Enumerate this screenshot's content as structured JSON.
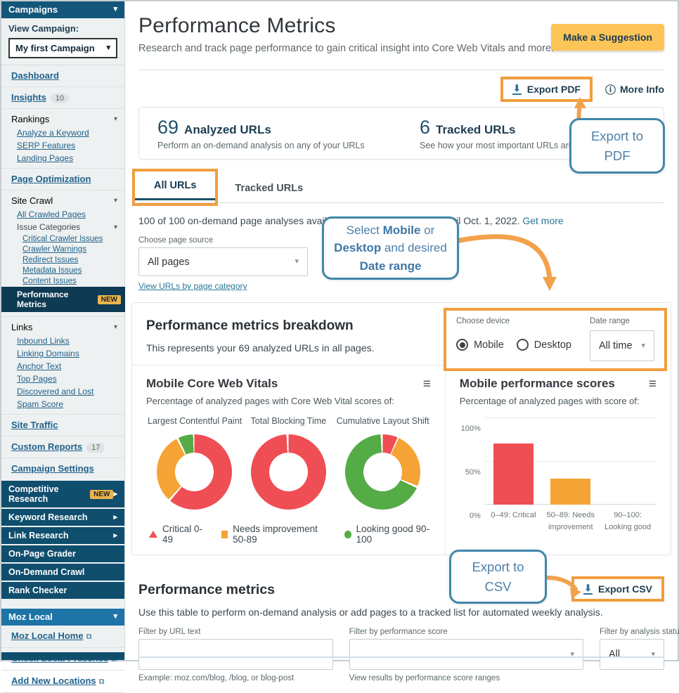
{
  "icons": {
    "chevron_down": "▾",
    "chevron_right": "▸",
    "menu": "≡",
    "info": "ⓘ",
    "download": "⬇",
    "external": "⧉"
  },
  "sidebar": {
    "campaigns_header": "Campaigns",
    "view_campaign_label": "View Campaign:",
    "campaign_value": "My first Campaign",
    "nav": [
      {
        "label": "Dashboard"
      },
      {
        "label": "Insights",
        "badge": "10"
      },
      {
        "label": "Rankings"
      },
      {
        "label": "Analyze a Keyword"
      },
      {
        "label": "SERP Features"
      },
      {
        "label": "Landing Pages"
      },
      {
        "label": "Page Optimization"
      },
      {
        "label": "Site Crawl"
      },
      {
        "label": "All Crawled Pages"
      },
      {
        "label": "Issue Categories"
      },
      {
        "label": "Critical Crawler Issues"
      },
      {
        "label": "Crawler Warnings"
      },
      {
        "label": "Redirect Issues"
      },
      {
        "label": "Metadata Issues"
      },
      {
        "label": "Content Issues"
      },
      {
        "label": "Performance Metrics",
        "badge": "NEW"
      },
      {
        "label": "Links"
      },
      {
        "label": "Inbound Links"
      },
      {
        "label": "Linking Domains"
      },
      {
        "label": "Anchor Text"
      },
      {
        "label": "Top Pages"
      },
      {
        "label": "Discovered and Lost"
      },
      {
        "label": "Spam Score"
      },
      {
        "label": "Site Traffic"
      },
      {
        "label": "Custom Reports",
        "badge": "17"
      },
      {
        "label": "Campaign Settings"
      }
    ],
    "dark": [
      {
        "label": "Competitive Research",
        "badge": "NEW"
      },
      {
        "label": "Keyword Research"
      },
      {
        "label": "Link Research"
      },
      {
        "label": "On-Page Grader"
      },
      {
        "label": "On-Demand Crawl"
      },
      {
        "label": "Rank Checker"
      }
    ],
    "moz": {
      "header": "Moz Local",
      "links": [
        {
          "label": "Moz Local Home"
        },
        {
          "label": "Check Local Presence"
        },
        {
          "label": "Add New Locations"
        }
      ]
    }
  },
  "header": {
    "title": "Performance Metrics",
    "subtitle": "Research and track page performance to gain critical insight into Core Web Vitals and more.",
    "suggestion_button": "Make a Suggestion",
    "export_pdf": "Export PDF",
    "more_info": "More Info"
  },
  "stats": [
    {
      "value": "69",
      "label": "Analyzed URLs",
      "desc": "Perform an on-demand analysis on any of your URLs"
    },
    {
      "value": "6",
      "label": "Tracked URLs",
      "desc": "See how your most important URLs are doing ov"
    }
  ],
  "tabs": [
    "All URLs",
    "Tracked URLs"
  ],
  "quota": {
    "text": "100 of 100 on-demand page analyses available across all campaigns until Oct. 1, 2022.",
    "link": "Get more"
  },
  "page_source": {
    "label": "Choose page source",
    "value": "All pages",
    "link": "View URLs by page category"
  },
  "callouts": {
    "export_pdf": "Export to PDF",
    "export_csv": "Export to CSV",
    "device": {
      "p0": "Select ",
      "p1": "Mobile",
      "p2": " or ",
      "p3": "Desktop",
      "p4": " and desired ",
      "p5": "Date range"
    }
  },
  "breakdown": {
    "heading": "Performance metrics breakdown",
    "desc": "This represents your 69 analyzed URLs in all pages.",
    "choose_device_label": "Choose device",
    "mobile": "Mobile",
    "desktop": "Desktop",
    "date_range_label": "Date range",
    "date_range_value": "All time"
  },
  "cwv": {
    "title": "Mobile Core Web Vitals",
    "subtitle": "Percentage of analyzed pages with Core Web Vital scores of:",
    "legend": [
      "Critical 0-49",
      "Needs improvement 50-89",
      "Looking good 90-100"
    ]
  },
  "scores": {
    "title": "Mobile performance scores",
    "subtitle": "Percentage of analyzed pages with score of:",
    "yticks": [
      "0%",
      "50%",
      "100%"
    ]
  },
  "chart_data": [
    {
      "type": "pie",
      "title": "Largest Contentful Paint",
      "labels": [
        "Critical 0-49",
        "Needs improvement 50-89",
        "Looking good 90-100"
      ],
      "values": [
        62,
        31,
        7
      ],
      "colors": [
        "#ef4e54",
        "#f6a335",
        "#55ab46"
      ]
    },
    {
      "type": "pie",
      "title": "Total Blocking Time",
      "labels": [
        "Critical 0-49",
        "Needs improvement 50-89",
        "Looking good 90-100"
      ],
      "values": [
        100,
        0,
        0
      ],
      "colors": [
        "#ef4e54",
        "#f6a335",
        "#55ab46"
      ]
    },
    {
      "type": "pie",
      "title": "Cumulative Layout Shift",
      "labels": [
        "Critical 0-49",
        "Needs improvement 50-89",
        "Looking good 90-100"
      ],
      "values": [
        7,
        25,
        68
      ],
      "colors": [
        "#ef4e54",
        "#f6a335",
        "#55ab46"
      ]
    },
    {
      "type": "bar",
      "title": "Mobile performance scores",
      "categories": [
        "0–49: Critical",
        "50–89: Needs improvement",
        "90–100: Looking good"
      ],
      "values": [
        70,
        30,
        0
      ],
      "colors": [
        "#ef4e54",
        "#f6a335",
        "#55ab46"
      ],
      "ylabel": "",
      "ylim": [
        0,
        100
      ],
      "yticks": [
        "0%",
        "50%",
        "100%"
      ],
      "grid": true
    }
  ],
  "table_section": {
    "heading": "Performance metrics",
    "desc": "Use this table to perform on-demand analysis or add pages to a tracked list for automated weekly analysis.",
    "export_csv": "Export CSV",
    "filters": {
      "url": {
        "label": "Filter by URL text",
        "help": "Example: moz.com/blog, /blog, or blog-post"
      },
      "score": {
        "label": "Filter by performance score",
        "help": "View results by performance score ranges"
      },
      "status": {
        "label": "Filter by analysis status",
        "value": "All"
      }
    }
  }
}
